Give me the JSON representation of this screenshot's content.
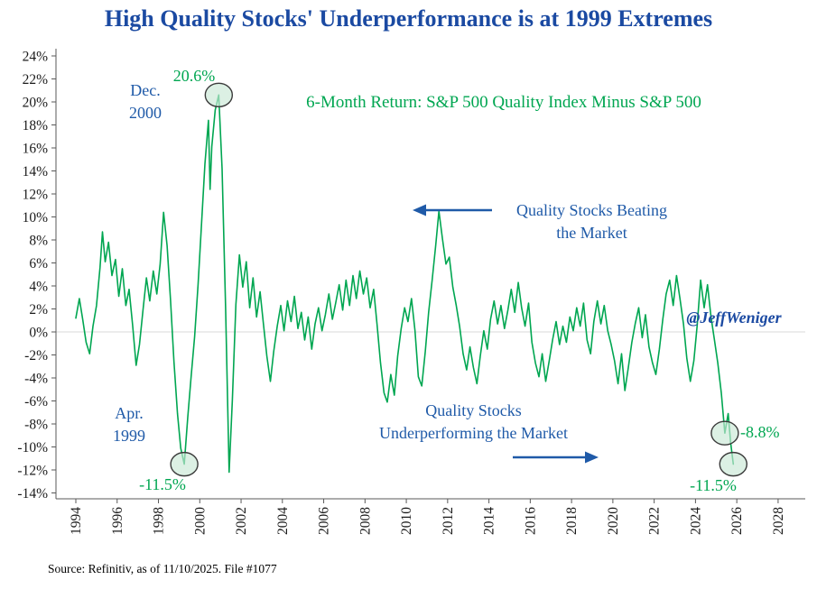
{
  "title": "High Quality Stocks' Underperformance is at 1999 Extremes",
  "subtitle": "6-Month Return: S&P 500 Quality Index Minus S&P 500",
  "watermark": "@JeffWeniger",
  "source": "Source: Refinitiv, as of 11/10/2025. File #1077",
  "colors": {
    "title_blue": "#1b4aa2",
    "annotation_blue": "#1f5aa8",
    "green": "#00a651",
    "circle_fill": "#c9e8d6",
    "circle_stroke": "#3a3a3a",
    "axis": "#595959",
    "zero_line": "#d9d9d9",
    "tick_text": "#1a1a1a"
  },
  "annotations": {
    "peak_date_line1": "Dec.",
    "peak_date_line2": "2000",
    "peak_label": "20.6%",
    "trough_date_line1": "Apr.",
    "trough_date_line2": "1999",
    "trough_label": "-11.5%",
    "right_upper_label": "-8.8%",
    "right_lower_label": "-11.5%",
    "beating_line1": "Quality Stocks Beating",
    "beating_line2": "the Market",
    "under_line1": "Quality Stocks",
    "under_line2": "Underperforming the Market"
  },
  "chart_data": {
    "type": "line",
    "title": "High Quality Stocks' Underperformance is at 1999 Extremes",
    "series_name": "6-Month Return: S&P 500 Quality Index Minus S&P 500",
    "line_color": "#00a651",
    "xlabel": "",
    "ylabel": "",
    "xlim": [
      1993.5,
      2028.8
    ],
    "ylim": [
      -14,
      24
    ],
    "grid": "zero-line-only",
    "x_tick_years": [
      1994,
      1996,
      1998,
      2000,
      2002,
      2004,
      2006,
      2008,
      2010,
      2012,
      2014,
      2016,
      2018,
      2020,
      2022,
      2024,
      2026,
      2028
    ],
    "y_tick_values": [
      24,
      22,
      20,
      18,
      16,
      14,
      12,
      10,
      8,
      6,
      4,
      2,
      0,
      -2,
      -4,
      -6,
      -8,
      -10,
      -12,
      -14
    ],
    "highlight_circles": [
      {
        "x": 2000.92,
        "y": 20.6,
        "label": "20.6%"
      },
      {
        "x": 1999.25,
        "y": -11.5,
        "label": "-11.5%"
      },
      {
        "x": 2025.42,
        "y": -8.8,
        "label": "-8.8%"
      },
      {
        "x": 2025.83,
        "y": -11.5,
        "label": "-11.5%"
      }
    ],
    "points": [
      [
        1994.0,
        1.2
      ],
      [
        1994.17,
        2.9
      ],
      [
        1994.33,
        1.1
      ],
      [
        1994.5,
        -0.9
      ],
      [
        1994.67,
        -1.9
      ],
      [
        1994.83,
        0.5
      ],
      [
        1995.0,
        2.3
      ],
      [
        1995.17,
        5.6
      ],
      [
        1995.29,
        8.7
      ],
      [
        1995.42,
        6.1
      ],
      [
        1995.58,
        7.8
      ],
      [
        1995.75,
        4.9
      ],
      [
        1995.92,
        6.3
      ],
      [
        1996.08,
        3.1
      ],
      [
        1996.25,
        5.5
      ],
      [
        1996.42,
        2.3
      ],
      [
        1996.58,
        3.7
      ],
      [
        1996.75,
        0.6
      ],
      [
        1996.92,
        -2.9
      ],
      [
        1997.08,
        -1.1
      ],
      [
        1997.25,
        1.9
      ],
      [
        1997.42,
        4.7
      ],
      [
        1997.58,
        2.7
      ],
      [
        1997.75,
        5.3
      ],
      [
        1997.92,
        3.3
      ],
      [
        1998.08,
        5.9
      ],
      [
        1998.25,
        10.4
      ],
      [
        1998.42,
        7.5
      ],
      [
        1998.58,
        2.9
      ],
      [
        1998.75,
        -2.6
      ],
      [
        1998.92,
        -7.1
      ],
      [
        1999.08,
        -10.1
      ],
      [
        1999.25,
        -11.5
      ],
      [
        1999.42,
        -7.4
      ],
      [
        1999.58,
        -3.9
      ],
      [
        1999.75,
        -0.4
      ],
      [
        1999.92,
        4.1
      ],
      [
        2000.08,
        9.2
      ],
      [
        2000.25,
        14.6
      ],
      [
        2000.42,
        18.4
      ],
      [
        2000.5,
        12.4
      ],
      [
        2000.58,
        16.1
      ],
      [
        2000.75,
        19.3
      ],
      [
        2000.92,
        20.6
      ],
      [
        2001.08,
        14.2
      ],
      [
        2001.25,
        2.1
      ],
      [
        2001.42,
        -12.2
      ],
      [
        2001.58,
        -5.9
      ],
      [
        2001.75,
        2.4
      ],
      [
        2001.92,
        6.7
      ],
      [
        2002.08,
        3.9
      ],
      [
        2002.25,
        6.1
      ],
      [
        2002.42,
        2.1
      ],
      [
        2002.58,
        4.7
      ],
      [
        2002.75,
        1.3
      ],
      [
        2002.92,
        3.5
      ],
      [
        2003.08,
        0.7
      ],
      [
        2003.25,
        -2.1
      ],
      [
        2003.42,
        -4.3
      ],
      [
        2003.58,
        -1.7
      ],
      [
        2003.75,
        0.5
      ],
      [
        2003.92,
        2.3
      ],
      [
        2004.08,
        0.1
      ],
      [
        2004.25,
        2.7
      ],
      [
        2004.42,
        0.9
      ],
      [
        2004.58,
        3.1
      ],
      [
        2004.75,
        0.3
      ],
      [
        2004.92,
        1.7
      ],
      [
        2005.08,
        -0.7
      ],
      [
        2005.25,
        1.3
      ],
      [
        2005.42,
        -1.5
      ],
      [
        2005.58,
        0.7
      ],
      [
        2005.75,
        2.1
      ],
      [
        2005.92,
        0.1
      ],
      [
        2006.08,
        1.5
      ],
      [
        2006.25,
        3.3
      ],
      [
        2006.42,
        1.1
      ],
      [
        2006.58,
        2.5
      ],
      [
        2006.75,
        4.1
      ],
      [
        2006.92,
        1.9
      ],
      [
        2007.08,
        4.5
      ],
      [
        2007.25,
        2.3
      ],
      [
        2007.42,
        4.9
      ],
      [
        2007.58,
        2.9
      ],
      [
        2007.75,
        5.3
      ],
      [
        2007.92,
        3.3
      ],
      [
        2008.08,
        4.7
      ],
      [
        2008.25,
        2.1
      ],
      [
        2008.42,
        3.7
      ],
      [
        2008.58,
        0.7
      ],
      [
        2008.75,
        -2.7
      ],
      [
        2008.92,
        -5.3
      ],
      [
        2009.08,
        -6.1
      ],
      [
        2009.25,
        -3.7
      ],
      [
        2009.42,
        -5.5
      ],
      [
        2009.58,
        -2.1
      ],
      [
        2009.75,
        0.3
      ],
      [
        2009.92,
        2.1
      ],
      [
        2010.08,
        0.9
      ],
      [
        2010.25,
        2.9
      ],
      [
        2010.42,
        0.1
      ],
      [
        2010.58,
        -3.9
      ],
      [
        2010.75,
        -4.7
      ],
      [
        2010.92,
        -1.7
      ],
      [
        2011.08,
        1.7
      ],
      [
        2011.25,
        4.5
      ],
      [
        2011.42,
        7.5
      ],
      [
        2011.58,
        10.5
      ],
      [
        2011.75,
        8.1
      ],
      [
        2011.92,
        5.9
      ],
      [
        2012.08,
        6.5
      ],
      [
        2012.25,
        3.9
      ],
      [
        2012.42,
        2.3
      ],
      [
        2012.58,
        0.5
      ],
      [
        2012.75,
        -1.9
      ],
      [
        2012.92,
        -3.3
      ],
      [
        2013.08,
        -1.3
      ],
      [
        2013.25,
        -3.1
      ],
      [
        2013.42,
        -4.5
      ],
      [
        2013.58,
        -2.1
      ],
      [
        2013.75,
        0.1
      ],
      [
        2013.92,
        -1.5
      ],
      [
        2014.08,
        1.1
      ],
      [
        2014.25,
        2.7
      ],
      [
        2014.42,
        0.7
      ],
      [
        2014.58,
        2.3
      ],
      [
        2014.75,
        0.3
      ],
      [
        2014.92,
        1.9
      ],
      [
        2015.08,
        3.7
      ],
      [
        2015.25,
        1.7
      ],
      [
        2015.42,
        4.3
      ],
      [
        2015.58,
        2.1
      ],
      [
        2015.75,
        0.5
      ],
      [
        2015.92,
        2.5
      ],
      [
        2016.08,
        -0.9
      ],
      [
        2016.25,
        -2.7
      ],
      [
        2016.42,
        -3.9
      ],
      [
        2016.58,
        -1.9
      ],
      [
        2016.75,
        -4.3
      ],
      [
        2016.92,
        -2.5
      ],
      [
        2017.08,
        -0.7
      ],
      [
        2017.25,
        0.9
      ],
      [
        2017.42,
        -1.1
      ],
      [
        2017.58,
        0.5
      ],
      [
        2017.75,
        -0.9
      ],
      [
        2017.92,
        1.3
      ],
      [
        2018.08,
        0.1
      ],
      [
        2018.25,
        2.1
      ],
      [
        2018.42,
        0.5
      ],
      [
        2018.58,
        2.5
      ],
      [
        2018.75,
        -0.7
      ],
      [
        2018.92,
        -1.9
      ],
      [
        2019.08,
        0.9
      ],
      [
        2019.25,
        2.7
      ],
      [
        2019.42,
        0.7
      ],
      [
        2019.58,
        2.3
      ],
      [
        2019.75,
        0.1
      ],
      [
        2019.92,
        -1.1
      ],
      [
        2020.08,
        -2.5
      ],
      [
        2020.25,
        -4.5
      ],
      [
        2020.42,
        -1.9
      ],
      [
        2020.58,
        -5.1
      ],
      [
        2020.75,
        -3.1
      ],
      [
        2020.92,
        -0.9
      ],
      [
        2021.08,
        0.7
      ],
      [
        2021.25,
        2.1
      ],
      [
        2021.42,
        -0.5
      ],
      [
        2021.58,
        1.5
      ],
      [
        2021.75,
        -1.3
      ],
      [
        2021.92,
        -2.7
      ],
      [
        2022.08,
        -3.7
      ],
      [
        2022.25,
        -1.5
      ],
      [
        2022.42,
        1.1
      ],
      [
        2022.58,
        3.3
      ],
      [
        2022.75,
        4.5
      ],
      [
        2022.92,
        2.3
      ],
      [
        2023.08,
        4.9
      ],
      [
        2023.25,
        2.9
      ],
      [
        2023.42,
        0.7
      ],
      [
        2023.58,
        -2.3
      ],
      [
        2023.75,
        -4.3
      ],
      [
        2023.92,
        -2.5
      ],
      [
        2024.08,
        0.5
      ],
      [
        2024.25,
        4.5
      ],
      [
        2024.42,
        2.1
      ],
      [
        2024.58,
        4.1
      ],
      [
        2024.75,
        1.3
      ],
      [
        2024.92,
        -0.7
      ],
      [
        2025.08,
        -2.7
      ],
      [
        2025.25,
        -5.3
      ],
      [
        2025.42,
        -8.8
      ],
      [
        2025.58,
        -7.1
      ],
      [
        2025.7,
        -9.6
      ],
      [
        2025.83,
        -11.5
      ]
    ]
  }
}
